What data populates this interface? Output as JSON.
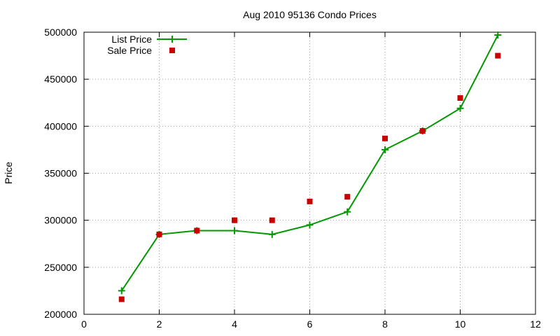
{
  "chart_data": {
    "type": "line",
    "title": "Aug 2010 95136 Condo Prices",
    "xlabel": "",
    "ylabel": "Price",
    "xlim": [
      0,
      12
    ],
    "ylim": [
      200000,
      500000
    ],
    "xticks": [
      0,
      2,
      4,
      6,
      8,
      10,
      12
    ],
    "yticks": [
      200000,
      250000,
      300000,
      350000,
      400000,
      450000,
      500000
    ],
    "grid": true,
    "legend": "top-left",
    "series": [
      {
        "name": "List Price",
        "style": "line-plus",
        "color": "#009900",
        "x": [
          1,
          2,
          3,
          4,
          5,
          6,
          7,
          8,
          9,
          10,
          11
        ],
        "y": [
          225000,
          285000,
          289000,
          289000,
          285000,
          295000,
          309000,
          375000,
          395000,
          419000,
          497000
        ]
      },
      {
        "name": "Sale Price",
        "style": "square",
        "color": "#cc0000",
        "x": [
          1,
          2,
          3,
          4,
          5,
          6,
          7,
          8,
          9,
          10,
          11
        ],
        "y": [
          216000,
          285000,
          289000,
          300000,
          300000,
          320000,
          325000,
          387000,
          395000,
          430000,
          475000
        ]
      }
    ]
  }
}
